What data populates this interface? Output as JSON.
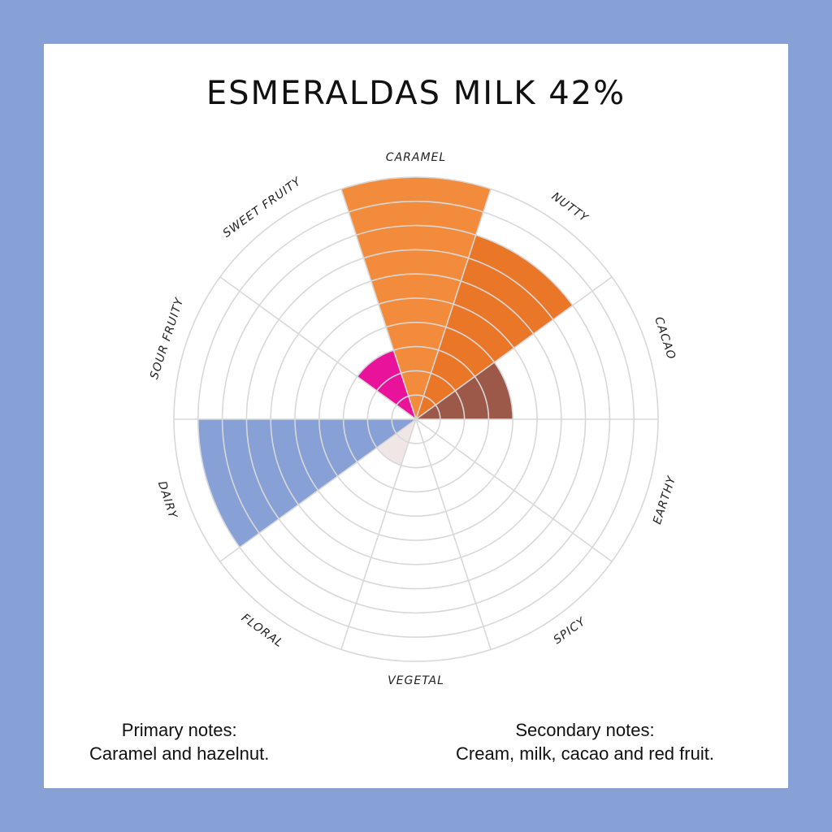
{
  "title": "ESMERALDAS MILK 42%",
  "colors": {
    "frame": "#87a0d5",
    "card": "#ffffff",
    "grid": "#d8d8d8"
  },
  "chart_data": {
    "type": "polar-area",
    "title": "ESMERALDAS MILK 42%",
    "max": 10,
    "categories": [
      "CARAMEL",
      "NUTTY",
      "CACAO",
      "EARTHY",
      "SPICY",
      "VEGETAL",
      "FLORAL",
      "DAIRY",
      "SOUR  FRUITY",
      "SWEET FRUITY"
    ],
    "values": [
      10,
      8,
      4,
      0,
      0,
      0,
      2,
      9,
      0,
      3
    ],
    "colors": [
      "#f28c3c",
      "#ea7628",
      "#9c5848",
      "#ffffff",
      "#ffffff",
      "#ffffff",
      "#f1e6e6",
      "#87a0d5",
      "#ffffff",
      "#e8139a"
    ],
    "grid": true
  },
  "notes": {
    "primary_heading": "Primary notes:",
    "primary_text": "Caramel and hazelnut.",
    "secondary_heading": "Secondary notes:",
    "secondary_text": "Cream, milk, cacao and red fruit."
  }
}
